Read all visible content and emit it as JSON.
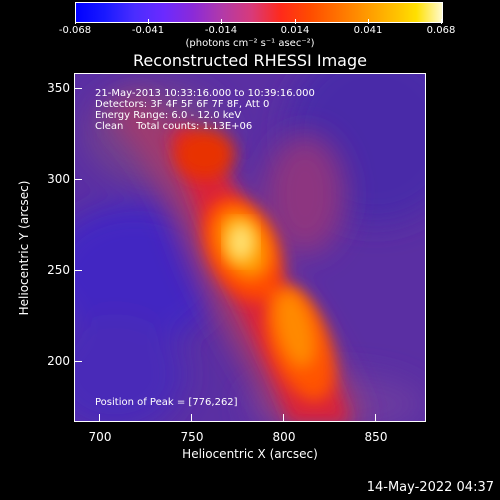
{
  "colorbar": {
    "tick_labels": [
      "-0.068",
      "-0.041",
      "-0.014",
      "0.014",
      "0.041",
      "0.068"
    ],
    "units_label": "(photons cm⁻² s⁻¹ asec⁻²)"
  },
  "title": "Reconstructed RHESSI Image",
  "info": {
    "line1": "21-May-2013 10:33:16.000 to 10:39:16.000",
    "line2": "Detectors: 3F 4F 5F 6F 7F 8F, Att 0",
    "line3": "Energy Range: 6.0 - 12.0 keV",
    "line4": "Clean    Total counts: 1.13E+06",
    "peak": "Position of Peak = [776,262]"
  },
  "axes": {
    "xlabel": "Heliocentric X (arcsec)",
    "ylabel": "Heliocentric Y (arcsec)",
    "xticks": [
      "700",
      "750",
      "800",
      "850"
    ],
    "yticks": [
      "350",
      "300",
      "250",
      "200"
    ],
    "xrange": [
      685,
      877
    ],
    "yrange": [
      165,
      357
    ]
  },
  "footer": {
    "timestamp": "14-May-2022 04:37"
  }
}
